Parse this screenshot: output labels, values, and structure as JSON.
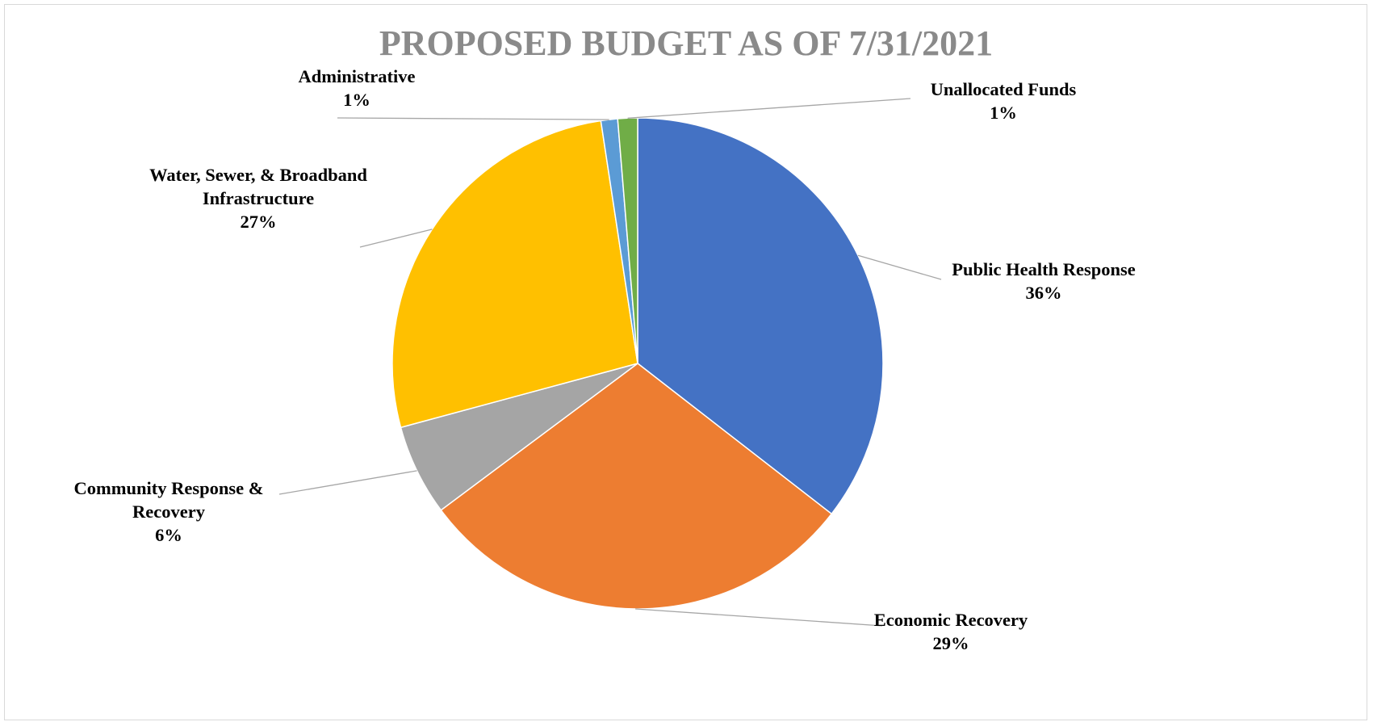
{
  "chart_data": {
    "type": "pie",
    "title": "PROPOSED BUDGET AS OF 7/31/2021",
    "slices": [
      {
        "name": "Public Health Response",
        "label_lines": [
          "Public Health Response"
        ],
        "percent_label": "36%",
        "value": 35.5,
        "color": "#4472c4"
      },
      {
        "name": "Economic Recovery",
        "label_lines": [
          "Economic Recovery"
        ],
        "percent_label": "29%",
        "value": 29.3,
        "color": "#ed7d31"
      },
      {
        "name": "Community Response & Recovery",
        "label_lines": [
          "Community Response &",
          "Recovery"
        ],
        "percent_label": "6%",
        "value": 6.0,
        "color": "#a5a5a5"
      },
      {
        "name": "Water, Sewer, & Broadband Infrastructure",
        "label_lines": [
          "Water, Sewer, & Broadband",
          "Infrastructure"
        ],
        "percent_label": "27%",
        "value": 26.8,
        "color": "#ffc000"
      },
      {
        "name": "Administrative",
        "label_lines": [
          "Administrative"
        ],
        "percent_label": "1%",
        "value": 1.1,
        "color": "#5b9bd5"
      },
      {
        "name": "Unallocated Funds",
        "label_lines": [
          "Unallocated Funds"
        ],
        "percent_label": "1%",
        "value": 1.3,
        "color": "#70ad47"
      }
    ],
    "start_angle_deg": 0,
    "direction": "clockwise",
    "legend": "none",
    "data_labels": "outside-with-leader-lines"
  }
}
